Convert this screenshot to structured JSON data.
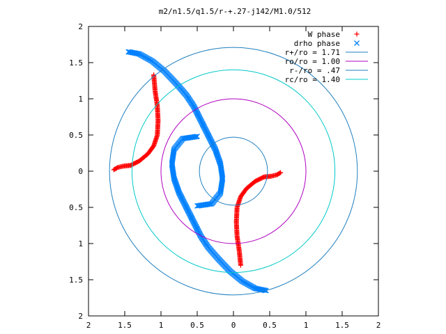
{
  "chart_data": {
    "type": "scatter",
    "title": "m2/n1.5/q1.5/r-+.27-j142/M1.0/512",
    "xlabel": "",
    "ylabel": "",
    "xlim": [
      -2,
      2
    ],
    "ylim": [
      -2,
      2
    ],
    "x_ticks": [
      -2,
      -1.5,
      -1,
      -0.5,
      0,
      0.5,
      1,
      1.5,
      2
    ],
    "y_ticks": [
      -2,
      -1.5,
      -1,
      -0.5,
      0,
      0.5,
      1,
      1.5,
      2
    ],
    "x_tick_labels": [
      "2",
      "1.5",
      "1",
      "0.5",
      "0",
      "0.5",
      "1",
      "1.5",
      "2"
    ],
    "y_tick_labels": [
      "2",
      "1.5",
      "1",
      "0.5",
      "0",
      "0.5",
      "1",
      "1.5",
      "2"
    ],
    "grid": false,
    "legend_position": "top-right",
    "colors": {
      "w_phase": "#ff0000",
      "drho_phase": "#0080ff",
      "r_plus": "#1f7fbf",
      "r_o": "#b000c0",
      "r_minus": "#1f7fbf",
      "r_c": "#00c8c8"
    },
    "series": [
      {
        "name": "W phase",
        "marker": "+",
        "arms": [
          [
            [
              0.1,
              -1.3
            ],
            [
              0.08,
              -1.1
            ],
            [
              0.05,
              -0.9
            ],
            [
              0.04,
              -0.7
            ],
            [
              0.05,
              -0.5
            ],
            [
              0.1,
              -0.35
            ],
            [
              0.18,
              -0.24
            ],
            [
              0.3,
              -0.14
            ],
            [
              0.42,
              -0.08
            ],
            [
              0.52,
              -0.07
            ],
            [
              0.6,
              -0.05
            ],
            [
              0.65,
              -0.02
            ]
          ],
          [
            [
              -1.1,
              1.33
            ],
            [
              -1.08,
              1.1
            ],
            [
              -1.05,
              0.9
            ],
            [
              -1.04,
              0.7
            ],
            [
              -1.05,
              0.5
            ],
            [
              -1.1,
              0.35
            ],
            [
              -1.18,
              0.24
            ],
            [
              -1.3,
              0.14
            ],
            [
              -1.42,
              0.08
            ],
            [
              -1.52,
              0.07
            ],
            [
              -1.6,
              0.05
            ],
            [
              -1.65,
              0.02
            ]
          ]
        ]
      },
      {
        "name": "drho phase",
        "marker": "x",
        "arms": [
          [
            [
              -0.5,
              0.48
            ],
            [
              -0.7,
              0.45
            ],
            [
              -0.82,
              0.3
            ],
            [
              -0.85,
              0.1
            ],
            [
              -0.82,
              -0.1
            ],
            [
              -0.75,
              -0.3
            ],
            [
              -0.65,
              -0.5
            ],
            [
              -0.55,
              -0.7
            ],
            [
              -0.45,
              -0.9
            ],
            [
              -0.35,
              -1.05
            ],
            [
              -0.22,
              -1.2
            ],
            [
              -0.05,
              -1.38
            ],
            [
              0.12,
              -1.52
            ],
            [
              0.3,
              -1.62
            ],
            [
              0.45,
              -1.65
            ]
          ],
          [
            [
              -0.5,
              -0.48
            ],
            [
              -0.3,
              -0.45
            ],
            [
              -0.18,
              -0.3
            ],
            [
              -0.15,
              -0.1
            ],
            [
              -0.18,
              0.1
            ],
            [
              -0.25,
              0.3
            ],
            [
              -0.35,
              0.5
            ],
            [
              -0.45,
              0.7
            ],
            [
              -0.55,
              0.9
            ],
            [
              -0.65,
              1.05
            ],
            [
              -0.78,
              1.2
            ],
            [
              -0.95,
              1.38
            ],
            [
              -1.12,
              1.52
            ],
            [
              -1.3,
              1.62
            ],
            [
              -1.45,
              1.65
            ]
          ]
        ]
      },
      {
        "name": "r+/ro = 1.71",
        "type": "circle",
        "radius": 1.71
      },
      {
        "name": "ro/ro = 1.00",
        "type": "circle",
        "radius": 1.0
      },
      {
        "name": "r-/ro = .47",
        "type": "circle",
        "radius": 0.47
      },
      {
        "name": "rc/ro = 1.40",
        "type": "circle",
        "radius": 1.4
      }
    ]
  }
}
